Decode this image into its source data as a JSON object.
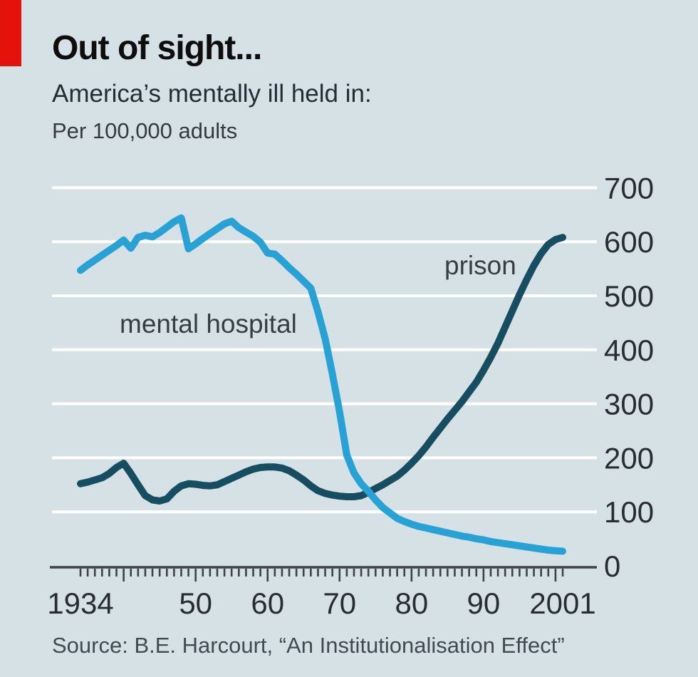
{
  "header": {
    "title": "Out of sight...",
    "subtitle": "America’s mentally ill held in:",
    "unit": "Per 100,000 adults"
  },
  "source": "Source: B.E. Harcourt, “An Institutionalisation Effect”",
  "colors": {
    "background": "#d6e1e6",
    "accent_red": "#e3120b",
    "mental_hospital_line": "#28a2d5",
    "prison_line": "#164d60",
    "gridline": "#ffffff",
    "axis": "#3d4347",
    "tick_label": "#272d31"
  },
  "chart_data": {
    "type": "line",
    "title": "Out of sight...",
    "subtitle": "America’s mentally ill held in:",
    "ylabel": "Per 100,000 adults",
    "xlabel": "",
    "ylim": [
      0,
      700
    ],
    "xlim": [
      1934,
      2001
    ],
    "grid": "horizontal-white",
    "legend_position": "inline-labels",
    "x": [
      1934,
      1935,
      1936,
      1937,
      1938,
      1939,
      1940,
      1941,
      1942,
      1943,
      1944,
      1945,
      1946,
      1947,
      1948,
      1949,
      1950,
      1951,
      1952,
      1953,
      1954,
      1955,
      1956,
      1957,
      1958,
      1959,
      1960,
      1961,
      1962,
      1963,
      1964,
      1965,
      1966,
      1967,
      1968,
      1969,
      1970,
      1971,
      1972,
      1973,
      1974,
      1975,
      1976,
      1977,
      1978,
      1979,
      1980,
      1981,
      1982,
      1983,
      1984,
      1985,
      1986,
      1987,
      1988,
      1989,
      1990,
      1991,
      1992,
      1993,
      1994,
      1995,
      1996,
      1997,
      1998,
      1999,
      2000,
      2001
    ],
    "series": [
      {
        "name": "mental hospital",
        "color": "#28a2d5",
        "values": [
          547,
          557,
          566,
          575,
          584,
          593,
          603,
          588,
          608,
          612,
          609,
          617,
          627,
          637,
          644,
          587,
          596,
          606,
          615,
          624,
          633,
          638,
          626,
          618,
          610,
          599,
          579,
          577,
          565,
          552,
          540,
          527,
          514,
          470,
          420,
          355,
          285,
          205,
          172,
          152,
          138,
          122,
          108,
          98,
          88,
          82,
          77,
          73,
          70,
          67,
          64,
          61,
          58,
          55,
          53,
          50,
          48,
          45,
          43,
          41,
          39,
          37,
          35,
          33,
          31,
          29,
          28,
          27
        ]
      },
      {
        "name": "prison",
        "color": "#164d60",
        "values": [
          152,
          155,
          159,
          163,
          171,
          182,
          190,
          171,
          150,
          130,
          122,
          120,
          124,
          138,
          148,
          152,
          151,
          149,
          148,
          150,
          156,
          162,
          168,
          174,
          179,
          182,
          183,
          183,
          181,
          176,
          168,
          159,
          148,
          139,
          134,
          131,
          129,
          128,
          128,
          130,
          136,
          143,
          150,
          158,
          166,
          177,
          190,
          204,
          220,
          238,
          255,
          272,
          288,
          304,
          322,
          340,
          362,
          386,
          412,
          442,
          472,
          502,
          530,
          556,
          578,
          595,
          604,
          608
        ]
      }
    ],
    "yticks": [
      {
        "value": 0,
        "label": "0"
      },
      {
        "value": 100,
        "label": "100"
      },
      {
        "value": 200,
        "label": "200"
      },
      {
        "value": 300,
        "label": "300"
      },
      {
        "value": 400,
        "label": "400"
      },
      {
        "value": 500,
        "label": "500"
      },
      {
        "value": 600,
        "label": "600"
      },
      {
        "value": 700,
        "label": "700"
      }
    ],
    "xticks": [
      {
        "value": 1934,
        "label": "1934"
      },
      {
        "value": 1950,
        "label": "50"
      },
      {
        "value": 1960,
        "label": "60"
      },
      {
        "value": 1970,
        "label": "70"
      },
      {
        "value": 1980,
        "label": "80"
      },
      {
        "value": 1990,
        "label": "90"
      },
      {
        "value": 2001,
        "label": "2001"
      }
    ]
  }
}
